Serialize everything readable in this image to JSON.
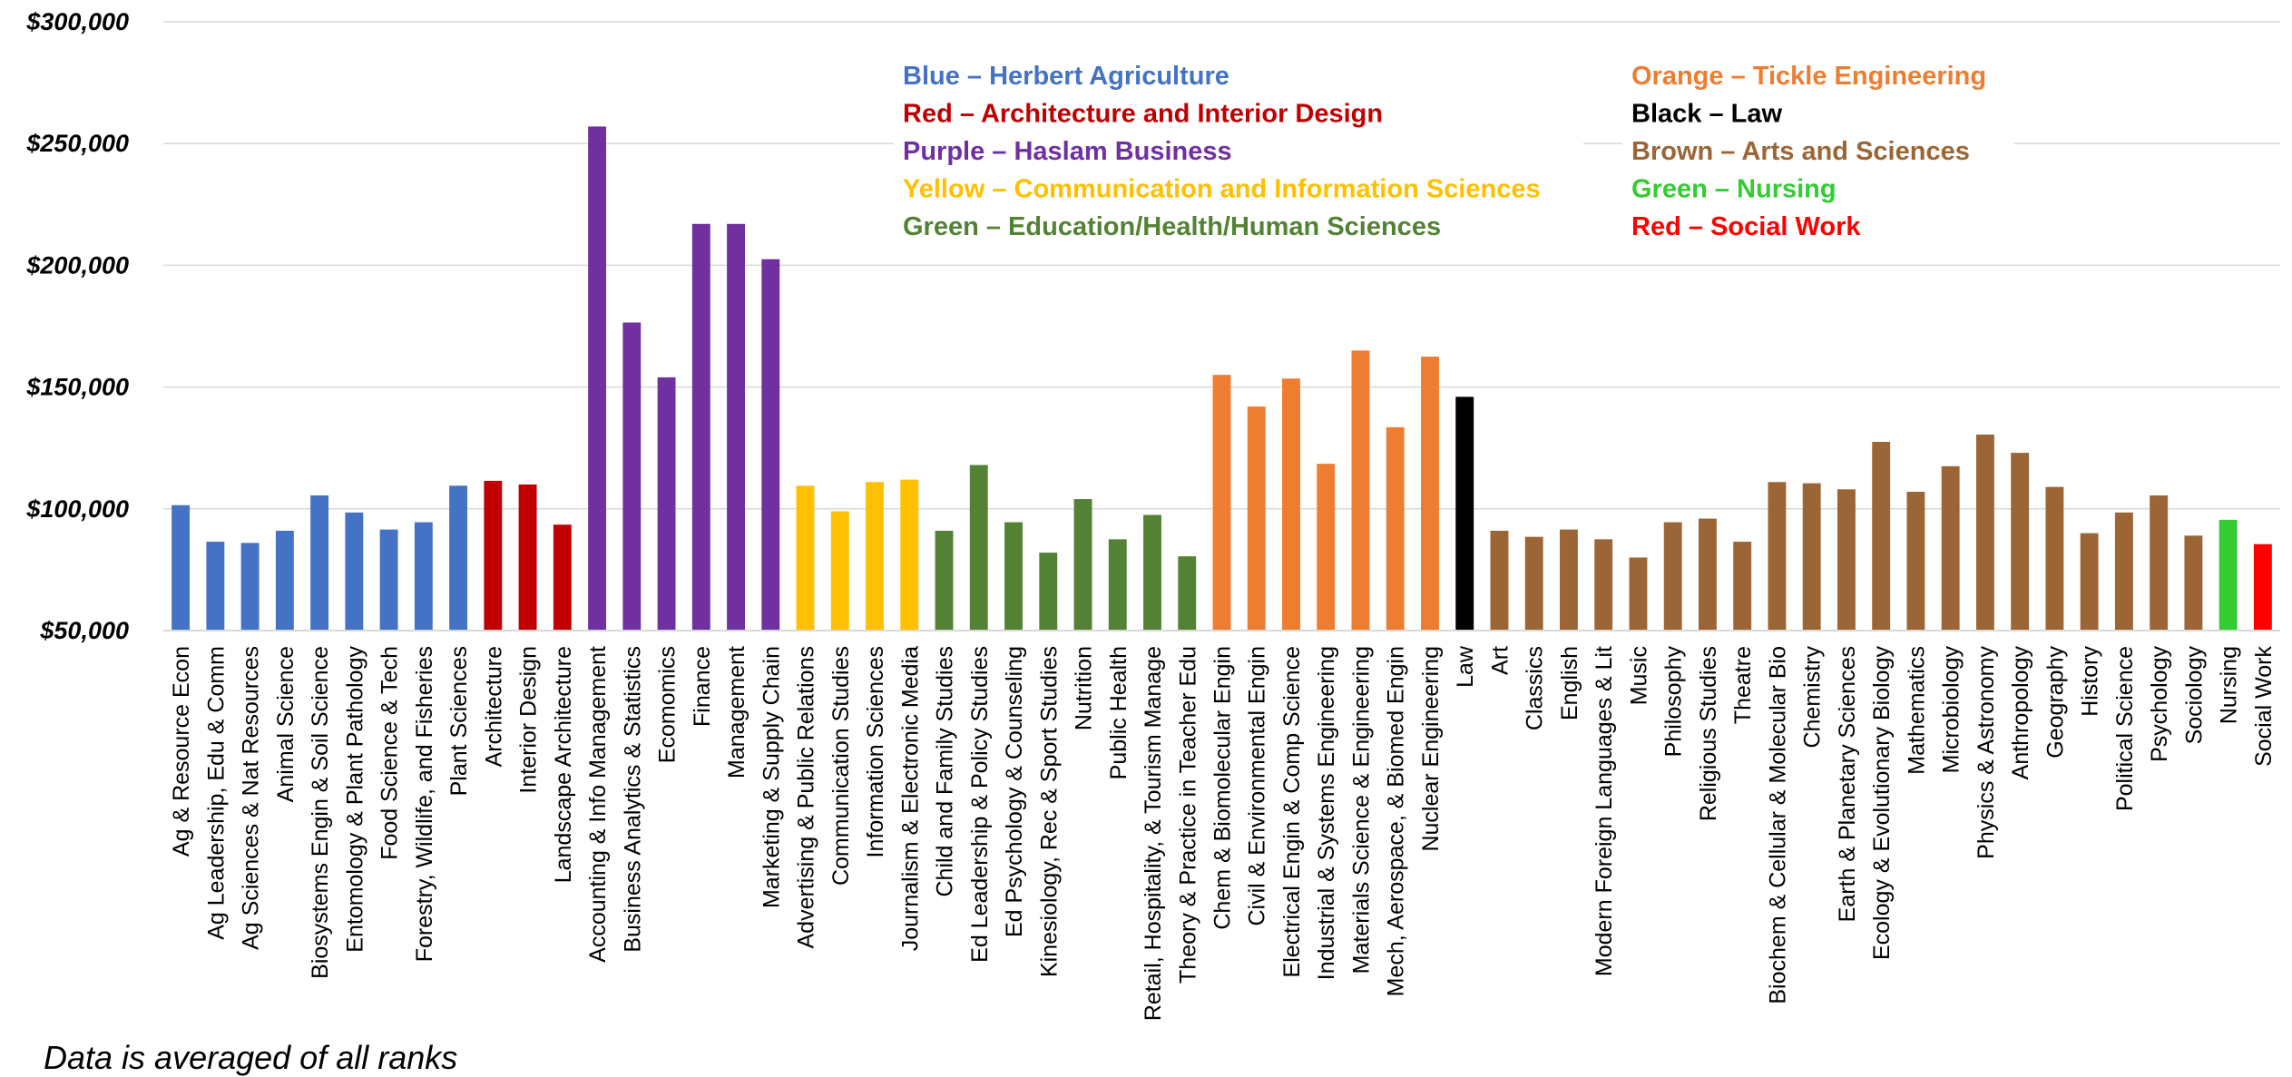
{
  "chart_data": {
    "type": "bar",
    "y_ticks": [
      "$50,000",
      "$100,000",
      "$150,000",
      "$200,000",
      "$250,000",
      "$300,000"
    ],
    "ylim": [
      50000,
      300000
    ],
    "grid": true,
    "colors": {
      "blue": "#4472C4",
      "darkred": "#C00000",
      "purple": "#7030A0",
      "yellow": "#FFC000",
      "green": "#548235",
      "orange": "#ED7D31",
      "black": "#000000",
      "brown": "#9C6535",
      "brightgreen": "#33CC33",
      "red": "#FF0000"
    },
    "legend": [
      {
        "text": "Blue – Herbert Agriculture",
        "color": "blue"
      },
      {
        "text": "Red – Architecture and Interior Design",
        "color": "darkred"
      },
      {
        "text": "Purple – Haslam Business",
        "color": "purple"
      },
      {
        "text": "Yellow – Communication and Information Sciences",
        "color": "yellow"
      },
      {
        "text": "Green – Education/Health/Human Sciences",
        "color": "green"
      },
      {
        "text": "Orange – Tickle Engineering",
        "color": "orange"
      },
      {
        "text": "Black – Law",
        "color": "black"
      },
      {
        "text": "Brown – Arts and Sciences",
        "color": "brown"
      },
      {
        "text": "Green – Nursing",
        "color": "brightgreen"
      },
      {
        "text": "Red – Social Work",
        "color": "red"
      }
    ],
    "bars": [
      {
        "label": "Ag & Resource Econ",
        "value": 101500,
        "color": "blue"
      },
      {
        "label": "Ag Leadership, Edu & Comm",
        "value": 86500,
        "color": "blue"
      },
      {
        "label": "Ag Sciences & Nat Resources",
        "value": 86000,
        "color": "blue"
      },
      {
        "label": "Animal Science",
        "value": 91000,
        "color": "blue"
      },
      {
        "label": "Biosystems Engin & Soil Science",
        "value": 105500,
        "color": "blue"
      },
      {
        "label": "Entomology & Plant Pathology",
        "value": 98500,
        "color": "blue"
      },
      {
        "label": "Food Science & Tech",
        "value": 91500,
        "color": "blue"
      },
      {
        "label": "Forestry, Wildlife, and Fisheries",
        "value": 94500,
        "color": "blue"
      },
      {
        "label": "Plant Sciences",
        "value": 109500,
        "color": "blue"
      },
      {
        "label": "Architecture",
        "value": 111500,
        "color": "darkred"
      },
      {
        "label": "Interior Design",
        "value": 110000,
        "color": "darkred"
      },
      {
        "label": "Landscape Architecture",
        "value": 93500,
        "color": "darkred"
      },
      {
        "label": "Accounting & Info Management",
        "value": 257000,
        "color": "purple"
      },
      {
        "label": "Business Analytics & Statistics",
        "value": 176500,
        "color": "purple"
      },
      {
        "label": "Ecomomics",
        "value": 154000,
        "color": "purple"
      },
      {
        "label": "Finance",
        "value": 217000,
        "color": "purple"
      },
      {
        "label": "Management",
        "value": 217000,
        "color": "purple"
      },
      {
        "label": "Marketing & Supply Chain",
        "value": 202500,
        "color": "purple"
      },
      {
        "label": "Advertising & Public Relations",
        "value": 109500,
        "color": "yellow"
      },
      {
        "label": "Communication Studies",
        "value": 99000,
        "color": "yellow"
      },
      {
        "label": "Information Sciences",
        "value": 111000,
        "color": "yellow"
      },
      {
        "label": "Journalism & Electronic Media",
        "value": 112000,
        "color": "yellow"
      },
      {
        "label": "Child and Family Studies",
        "value": 91000,
        "color": "green"
      },
      {
        "label": "Ed Leadership & Policy Studies",
        "value": 118000,
        "color": "green"
      },
      {
        "label": "Ed Psychology & Counseling",
        "value": 94500,
        "color": "green"
      },
      {
        "label": "Kinesiology, Rec & Sport Studies",
        "value": 82000,
        "color": "green"
      },
      {
        "label": "Nutrition",
        "value": 104000,
        "color": "green"
      },
      {
        "label": "Public Health",
        "value": 87500,
        "color": "green"
      },
      {
        "label": "Retail, Hospitality, & Tourism Manage",
        "value": 97500,
        "color": "green"
      },
      {
        "label": "Theory & Practice in Teacher Edu",
        "value": 80500,
        "color": "green"
      },
      {
        "label": "Chem & Biomolecular Engin",
        "value": 155000,
        "color": "orange"
      },
      {
        "label": "Civil & Environmental Engin",
        "value": 142000,
        "color": "orange"
      },
      {
        "label": "Electrical Engin & Comp Science",
        "value": 153500,
        "color": "orange"
      },
      {
        "label": "Industrial & Systems Engineering",
        "value": 118500,
        "color": "orange"
      },
      {
        "label": "Materials Science & Engineering",
        "value": 165000,
        "color": "orange"
      },
      {
        "label": "Mech, Aerospace, & Biomed Engin",
        "value": 133500,
        "color": "orange"
      },
      {
        "label": "Nuclear Engineering",
        "value": 162500,
        "color": "orange"
      },
      {
        "label": "Law",
        "value": 146000,
        "color": "black"
      },
      {
        "label": "Art",
        "value": 91000,
        "color": "brown"
      },
      {
        "label": "Classics",
        "value": 88500,
        "color": "brown"
      },
      {
        "label": "English",
        "value": 91500,
        "color": "brown"
      },
      {
        "label": "Modern Foreign Languages & Lit",
        "value": 87500,
        "color": "brown"
      },
      {
        "label": "Music",
        "value": 80000,
        "color": "brown"
      },
      {
        "label": "Philosophy",
        "value": 94500,
        "color": "brown"
      },
      {
        "label": "Religious Studies",
        "value": 96000,
        "color": "brown"
      },
      {
        "label": "Theatre",
        "value": 86500,
        "color": "brown"
      },
      {
        "label": "Biochem & Cellular & Molecular Bio",
        "value": 111000,
        "color": "brown"
      },
      {
        "label": "Chemistry",
        "value": 110500,
        "color": "brown"
      },
      {
        "label": "Earth & Planetary Sciences",
        "value": 108000,
        "color": "brown"
      },
      {
        "label": "Ecology & Evolutionary Biology",
        "value": 127500,
        "color": "brown"
      },
      {
        "label": "Mathematics",
        "value": 107000,
        "color": "brown"
      },
      {
        "label": "Microbiology",
        "value": 117500,
        "color": "brown"
      },
      {
        "label": "Physics & Astronomy",
        "value": 130500,
        "color": "brown"
      },
      {
        "label": "Anthropology",
        "value": 123000,
        "color": "brown"
      },
      {
        "label": "Geography",
        "value": 109000,
        "color": "brown"
      },
      {
        "label": "History",
        "value": 90000,
        "color": "brown"
      },
      {
        "label": "Political Science",
        "value": 98500,
        "color": "brown"
      },
      {
        "label": "Psychology",
        "value": 105500,
        "color": "brown"
      },
      {
        "label": "Sociology",
        "value": 89000,
        "color": "brown"
      },
      {
        "label": "Nursing",
        "value": 95500,
        "color": "brightgreen"
      },
      {
        "label": "Social Work",
        "value": 85500,
        "color": "red"
      }
    ],
    "footnote": "Data is averaged of all ranks"
  }
}
